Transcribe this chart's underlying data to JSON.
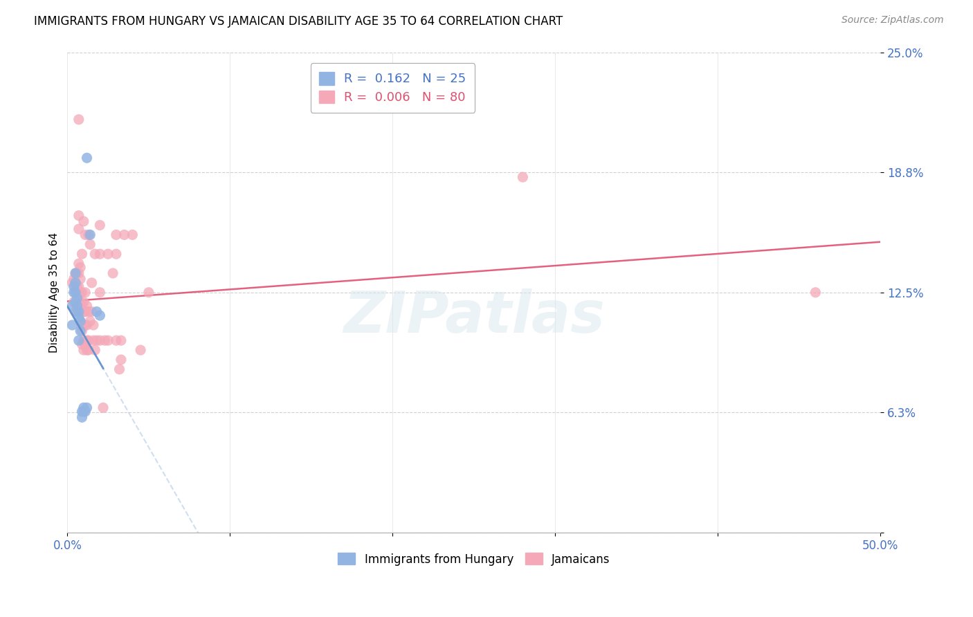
{
  "title": "IMMIGRANTS FROM HUNGARY VS JAMAICAN DISABILITY AGE 35 TO 64 CORRELATION CHART",
  "source_text": "Source: ZipAtlas.com",
  "ylabel": "Disability Age 35 to 64",
  "xlim": [
    0.0,
    0.5
  ],
  "ylim": [
    0.0,
    0.25
  ],
  "yticks": [
    0.0,
    0.0625,
    0.125,
    0.1875,
    0.25
  ],
  "ytick_labels": [
    "",
    "6.3%",
    "12.5%",
    "18.8%",
    "25.0%"
  ],
  "xticks": [
    0.0,
    0.1,
    0.2,
    0.3,
    0.4,
    0.5
  ],
  "xtick_labels": [
    "0.0%",
    "",
    "",
    "",
    "",
    "50.0%"
  ],
  "legend_blue_r": "0.162",
  "legend_blue_n": "25",
  "legend_pink_r": "0.006",
  "legend_pink_n": "80",
  "blue_color": "#92b4e3",
  "pink_color": "#f4a8b8",
  "trend_blue_color": "#5b8ecc",
  "trend_pink_color": "#e05070",
  "trend_dashed_color": "#b0c8e8",
  "watermark": "ZIPatlas",
  "blue_points": [
    [
      0.003,
      0.108
    ],
    [
      0.003,
      0.118
    ],
    [
      0.004,
      0.125
    ],
    [
      0.004,
      0.128
    ],
    [
      0.005,
      0.12
    ],
    [
      0.005,
      0.125
    ],
    [
      0.005,
      0.13
    ],
    [
      0.005,
      0.135
    ],
    [
      0.006,
      0.115
    ],
    [
      0.006,
      0.118
    ],
    [
      0.006,
      0.122
    ],
    [
      0.007,
      0.1
    ],
    [
      0.007,
      0.112
    ],
    [
      0.007,
      0.115
    ],
    [
      0.008,
      0.105
    ],
    [
      0.008,
      0.11
    ],
    [
      0.009,
      0.063
    ],
    [
      0.009,
      0.06
    ],
    [
      0.01,
      0.065
    ],
    [
      0.01,
      0.063
    ],
    [
      0.011,
      0.063
    ],
    [
      0.012,
      0.065
    ],
    [
      0.014,
      0.155
    ],
    [
      0.018,
      0.115
    ],
    [
      0.02,
      0.113
    ]
  ],
  "pink_points": [
    [
      0.003,
      0.13
    ],
    [
      0.004,
      0.12
    ],
    [
      0.004,
      0.132
    ],
    [
      0.005,
      0.115
    ],
    [
      0.005,
      0.125
    ],
    [
      0.005,
      0.13
    ],
    [
      0.005,
      0.135
    ],
    [
      0.006,
      0.118
    ],
    [
      0.006,
      0.125
    ],
    [
      0.006,
      0.128
    ],
    [
      0.006,
      0.135
    ],
    [
      0.007,
      0.118
    ],
    [
      0.007,
      0.12
    ],
    [
      0.007,
      0.128
    ],
    [
      0.007,
      0.135
    ],
    [
      0.007,
      0.14
    ],
    [
      0.007,
      0.158
    ],
    [
      0.007,
      0.165
    ],
    [
      0.008,
      0.11
    ],
    [
      0.008,
      0.115
    ],
    [
      0.008,
      0.12
    ],
    [
      0.008,
      0.125
    ],
    [
      0.008,
      0.132
    ],
    [
      0.008,
      0.138
    ],
    [
      0.009,
      0.098
    ],
    [
      0.009,
      0.105
    ],
    [
      0.009,
      0.108
    ],
    [
      0.009,
      0.118
    ],
    [
      0.009,
      0.125
    ],
    [
      0.009,
      0.145
    ],
    [
      0.01,
      0.095
    ],
    [
      0.01,
      0.1
    ],
    [
      0.01,
      0.108
    ],
    [
      0.01,
      0.115
    ],
    [
      0.01,
      0.12
    ],
    [
      0.01,
      0.162
    ],
    [
      0.011,
      0.098
    ],
    [
      0.011,
      0.108
    ],
    [
      0.011,
      0.115
    ],
    [
      0.011,
      0.125
    ],
    [
      0.011,
      0.155
    ],
    [
      0.012,
      0.095
    ],
    [
      0.012,
      0.1
    ],
    [
      0.012,
      0.108
    ],
    [
      0.012,
      0.118
    ],
    [
      0.013,
      0.095
    ],
    [
      0.013,
      0.1
    ],
    [
      0.013,
      0.115
    ],
    [
      0.013,
      0.155
    ],
    [
      0.014,
      0.11
    ],
    [
      0.014,
      0.15
    ],
    [
      0.015,
      0.115
    ],
    [
      0.015,
      0.13
    ],
    [
      0.016,
      0.1
    ],
    [
      0.016,
      0.108
    ],
    [
      0.017,
      0.095
    ],
    [
      0.017,
      0.145
    ],
    [
      0.018,
      0.1
    ],
    [
      0.02,
      0.1
    ],
    [
      0.02,
      0.125
    ],
    [
      0.02,
      0.145
    ],
    [
      0.02,
      0.16
    ],
    [
      0.022,
      0.065
    ],
    [
      0.023,
      0.1
    ],
    [
      0.025,
      0.1
    ],
    [
      0.025,
      0.145
    ],
    [
      0.028,
      0.135
    ],
    [
      0.03,
      0.1
    ],
    [
      0.03,
      0.145
    ],
    [
      0.03,
      0.155
    ],
    [
      0.032,
      0.085
    ],
    [
      0.033,
      0.09
    ],
    [
      0.033,
      0.1
    ],
    [
      0.035,
      0.155
    ],
    [
      0.04,
      0.155
    ],
    [
      0.045,
      0.095
    ],
    [
      0.05,
      0.125
    ],
    [
      0.28,
      0.185
    ],
    [
      0.46,
      0.125
    ]
  ],
  "pink_outlier_high": [
    0.007,
    0.215
  ],
  "blue_outlier_high": [
    0.012,
    0.195
  ]
}
